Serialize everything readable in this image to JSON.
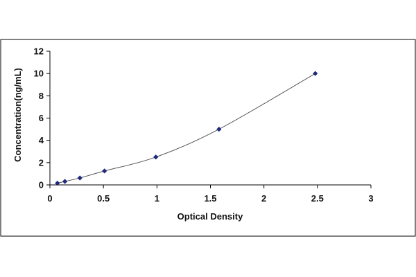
{
  "chart_data": {
    "type": "scatter",
    "xlabel": "Optical Density",
    "ylabel": "Concentration(ng/mL)",
    "xlim": [
      0,
      3
    ],
    "ylim": [
      0,
      12
    ],
    "x_ticks": [
      "0",
      "0.5",
      "1",
      "1.5",
      "2",
      "2.5",
      "3"
    ],
    "y_ticks": [
      "0",
      "2",
      "4",
      "6",
      "8",
      "10",
      "12"
    ],
    "grid": false,
    "legend": "none",
    "series": [
      {
        "x": [
          0.07,
          0.14,
          0.28,
          0.51,
          0.99,
          1.58,
          2.48
        ],
        "y": [
          0.156,
          0.312,
          0.625,
          1.25,
          2.5,
          5,
          10
        ]
      }
    ],
    "colors": {
      "marker": "#1f2a7a",
      "curve": "#555555",
      "axis": "#000000",
      "frame": "#000000"
    }
  }
}
